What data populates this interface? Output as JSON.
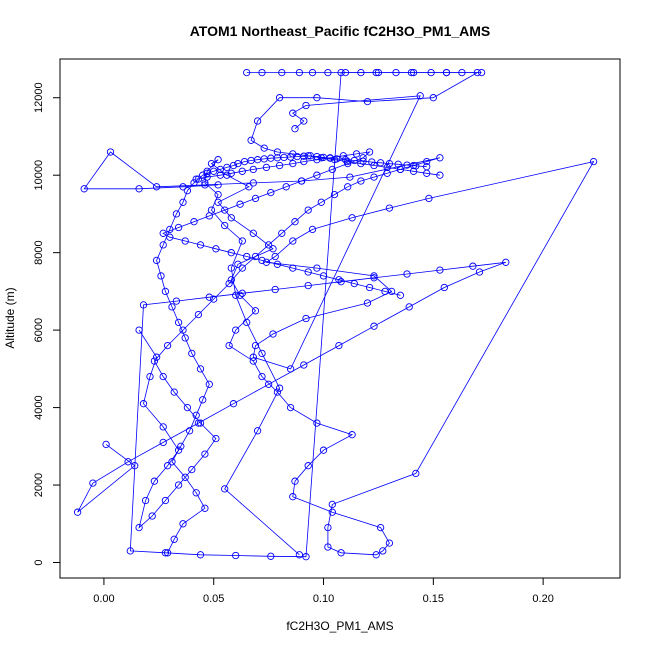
{
  "chart_data": {
    "type": "scatter",
    "title": "ATOM1 Northeast_Pacific fC2H3O_PM1_AMS",
    "xlabel": "fC2H3O_PM1_AMS",
    "ylabel": "Altitude (m)",
    "xlim": [
      -0.02,
      0.235
    ],
    "ylim": [
      -400,
      13000
    ],
    "xticks": [
      0.0,
      0.05,
      0.1,
      0.15,
      0.2
    ],
    "xtick_labels": [
      "0.00",
      "0.05",
      "0.10",
      "0.15",
      "0.20"
    ],
    "yticks": [
      0,
      2000,
      4000,
      6000,
      8000,
      10000,
      12000
    ],
    "ytick_labels": [
      "0",
      "2000",
      "4000",
      "6000",
      "8000",
      "10000",
      "12000"
    ],
    "grid": false,
    "marker": "open-circle",
    "connected": true,
    "series_color": "#0000FF",
    "series": [
      {
        "x": [
          0.089,
          0.055,
          0.07,
          0.08,
          0.072,
          0.065,
          0.06,
          0.058,
          0.063,
          0.055,
          0.049,
          0.052,
          0.046,
          0.047,
          0.052,
          0.049,
          0.056,
          0.066,
          0.052,
          0.058,
          0.068,
          0.077,
          0.061,
          0.058,
          0.062,
          0.069,
          0.06,
          0.057,
          0.068,
          0.072,
          0.079,
          0.085,
          0.097,
          0.113,
          0.1,
          0.093,
          0.087,
          0.086,
          0.104,
          0.126,
          0.13,
          0.127,
          0.124,
          0.108,
          0.102,
          0.102,
          0.104,
          0.142,
          0.223,
          0.148,
          0.13,
          0.113,
          0.095,
          0.086,
          0.078,
          0.074,
          0.097,
          0.123,
          0.131,
          0.12,
          0.092,
          0.077,
          0.069,
          0.068,
          0.085,
          0.144,
          0.092,
          0.086,
          0.091,
          0.087
        ],
        "y": [
          200,
          1900,
          3400,
          4500,
          5400,
          6200,
          6900,
          7600,
          8300,
          8700,
          9100,
          9500,
          9800,
          10100,
          10400,
          10300,
          10000,
          9700,
          9300,
          8900,
          8500,
          8100,
          7700,
          7300,
          6900,
          6500,
          6000,
          5600,
          5200,
          4800,
          4400,
          4000,
          3600,
          3300,
          2900,
          2500,
          2100,
          1700,
          1300,
          900,
          500,
          300,
          200,
          250,
          400,
          900,
          1500,
          2300,
          10350,
          9400,
          9150,
          8900,
          8600,
          8300,
          7900,
          7750,
          7600,
          7400,
          7000,
          6700,
          6300,
          5900,
          5600,
          5300,
          5000,
          12050,
          11800,
          11600,
          11400,
          11200
        ]
      },
      {
        "x": [
          0.029,
          0.032,
          0.036,
          0.046,
          0.042,
          0.037,
          0.031,
          0.035,
          0.039,
          0.042,
          0.045,
          0.048,
          0.044,
          0.04,
          0.037,
          0.034,
          0.031,
          0.028,
          0.026,
          0.024,
          0.027,
          0.03,
          0.033,
          0.036,
          0.038,
          0.041,
          0.043,
          0.045,
          0.047,
          0.05,
          0.053,
          0.056,
          0.059,
          0.061,
          0.064,
          0.067,
          0.07,
          0.073,
          0.076,
          0.079,
          0.082,
          0.085,
          0.088,
          0.091,
          0.094,
          0.097,
          0.1,
          0.103,
          0.106,
          0.11,
          0.114,
          0.118,
          0.122,
          0.126,
          0.13,
          0.134,
          0.138,
          0.142,
          0.147
        ],
        "y": [
          250,
          600,
          1000,
          1400,
          1800,
          2200,
          2600,
          3000,
          3400,
          3800,
          4200,
          4600,
          5000,
          5400,
          5800,
          6200,
          6600,
          7000,
          7400,
          7800,
          8200,
          8600,
          9000,
          9300,
          9600,
          9800,
          9900,
          10000,
          10050,
          10100,
          10150,
          10200,
          10250,
          10300,
          10350,
          10380,
          10400,
          10420,
          10440,
          10450,
          10460,
          10470,
          10480,
          10490,
          10500,
          10480,
          10460,
          10440,
          10420,
          10400,
          10380,
          10360,
          10340,
          10320,
          10300,
          10280,
          10260,
          10240,
          10220
        ]
      },
      {
        "x": [
          0.016,
          0.024,
          0.021,
          0.018,
          0.027,
          0.034,
          0.029,
          0.023,
          0.019,
          0.016,
          0.022,
          0.028,
          0.034,
          0.04,
          0.046,
          0.051,
          0.044,
          0.038,
          0.032,
          0.027,
          0.023,
          0.029,
          0.036,
          0.043,
          0.05,
          0.057,
          0.063,
          0.069,
          0.075,
          0.081,
          0.087,
          0.093,
          0.099,
          0.105,
          0.111,
          0.117,
          0.123,
          0.129,
          0.135,
          0.141,
          0.147,
          0.153,
          0.112,
          0.09,
          0.068,
          0.046,
          0.024,
          0.003,
          -0.009,
          0.016,
          0.036,
          0.052
        ],
        "y": [
          6000,
          5300,
          4800,
          4100,
          3500,
          2900,
          2500,
          2100,
          1600,
          900,
          1200,
          1600,
          2000,
          2400,
          2800,
          3200,
          3600,
          4000,
          4400,
          4800,
          5200,
          5600,
          6000,
          6400,
          6800,
          7200,
          7600,
          7900,
          8200,
          8500,
          8800,
          9100,
          9300,
          9500,
          9700,
          9850,
          9950,
          10050,
          10150,
          10250,
          10350,
          10450,
          9950,
          9850,
          9800,
          9750,
          9700,
          10600,
          9650,
          9650,
          9700,
          9750
        ]
      },
      {
        "x": [
          0.001,
          0.014,
          -0.012,
          -0.005,
          0.011,
          0.027,
          0.043,
          0.059,
          0.075,
          0.091,
          0.107,
          0.123,
          0.139,
          0.155,
          0.171,
          0.183,
          0.168,
          0.153,
          0.138,
          0.123,
          0.108,
          0.093,
          0.078,
          0.063,
          0.048,
          0.033,
          0.018,
          0.012,
          0.028,
          0.044,
          0.06,
          0.076,
          0.092,
          0.108,
          0.124,
          0.14,
          0.156,
          0.172
        ],
        "y": [
          3050,
          2500,
          1300,
          2050,
          2600,
          3100,
          3600,
          4100,
          4600,
          5100,
          5600,
          6100,
          6600,
          7100,
          7500,
          7750,
          7650,
          7550,
          7450,
          7350,
          7250,
          7150,
          7050,
          6950,
          6850,
          6750,
          6650,
          300,
          250,
          200,
          180,
          160,
          150,
          12650,
          12650,
          12650,
          12650,
          12650
        ]
      },
      {
        "x": [
          0.065,
          0.072,
          0.081,
          0.089,
          0.095,
          0.102,
          0.11,
          0.117,
          0.125,
          0.133,
          0.141,
          0.149,
          0.156,
          0.163,
          0.17,
          0.15,
          0.12,
          0.097,
          0.08,
          0.07,
          0.067,
          0.073,
          0.079,
          0.086,
          0.093,
          0.099,
          0.105,
          0.111,
          0.117,
          0.123,
          0.129,
          0.135,
          0.141,
          0.147,
          0.153
        ],
        "y": [
          12650,
          12650,
          12650,
          12650,
          12650,
          12650,
          12650,
          12650,
          12650,
          12650,
          12650,
          12650,
          12650,
          12650,
          12650,
          12000,
          11900,
          12000,
          12000,
          11400,
          10900,
          10700,
          10600,
          10550,
          10500,
          10450,
          10400,
          10350,
          10300,
          10250,
          10200,
          10150,
          10100,
          10050,
          10000
        ]
      },
      {
        "x": [
          0.042,
          0.047,
          0.053,
          0.058,
          0.063,
          0.068,
          0.074,
          0.08,
          0.086,
          0.091,
          0.097,
          0.103,
          0.109,
          0.115,
          0.121,
          0.118,
          0.111,
          0.104,
          0.097,
          0.09,
          0.083,
          0.076,
          0.069,
          0.062,
          0.055,
          0.048,
          0.041,
          0.034,
          0.027,
          0.03,
          0.037,
          0.044,
          0.051,
          0.058,
          0.065,
          0.072,
          0.079,
          0.086,
          0.093,
          0.1,
          0.107,
          0.114,
          0.121,
          0.128,
          0.135
        ],
        "y": [
          9900,
          9950,
          10000,
          10050,
          10100,
          10150,
          10200,
          10250,
          10300,
          10350,
          10400,
          10450,
          10500,
          10550,
          10600,
          10450,
          10300,
          10150,
          10000,
          9850,
          9700,
          9550,
          9400,
          9250,
          9100,
          8950,
          8800,
          8650,
          8500,
          8400,
          8300,
          8200,
          8100,
          8000,
          7900,
          7800,
          7700,
          7600,
          7500,
          7400,
          7300,
          7200,
          7100,
          7000,
          6900
        ]
      }
    ]
  }
}
